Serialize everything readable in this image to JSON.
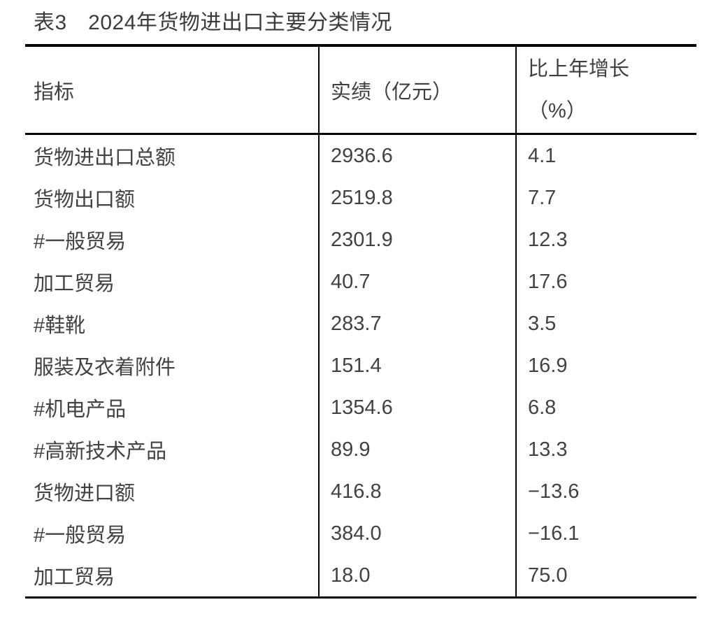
{
  "table": {
    "title": "表3　2024年货物进出口主要分类情况",
    "columns": [
      {
        "label": "指标"
      },
      {
        "label": "实绩（亿元）"
      },
      {
        "line1": "比上年增长",
        "line2": "（%）"
      }
    ],
    "rows": [
      {
        "indicator": "货物进出口总额",
        "value": "2936.6",
        "growth": "4.1"
      },
      {
        "indicator": "货物出口额",
        "value": "2519.8",
        "growth": "7.7"
      },
      {
        "indicator": "#一般贸易",
        "value": "2301.9",
        "growth": "12.3"
      },
      {
        "indicator": "加工贸易",
        "value": "40.7",
        "growth": "17.6"
      },
      {
        "indicator": "#鞋靴",
        "value": "283.7",
        "growth": "3.5"
      },
      {
        "indicator": "服装及衣着附件",
        "value": "151.4",
        "growth": "16.9"
      },
      {
        "indicator": "#机电产品",
        "value": "1354.6",
        "growth": "6.8"
      },
      {
        "indicator": "#高新技术产品",
        "value": "89.9",
        "growth": "13.3"
      },
      {
        "indicator": "货物进口额",
        "value": "416.8",
        "growth": "−13.6"
      },
      {
        "indicator": "#一般贸易",
        "value": "384.0",
        "growth": "−16.1"
      },
      {
        "indicator": "加工贸易",
        "value": "18.0",
        "growth": "75.0"
      }
    ],
    "colors": {
      "text": "#3f3f3f",
      "border": "#000000",
      "background": "#ffffff"
    }
  }
}
